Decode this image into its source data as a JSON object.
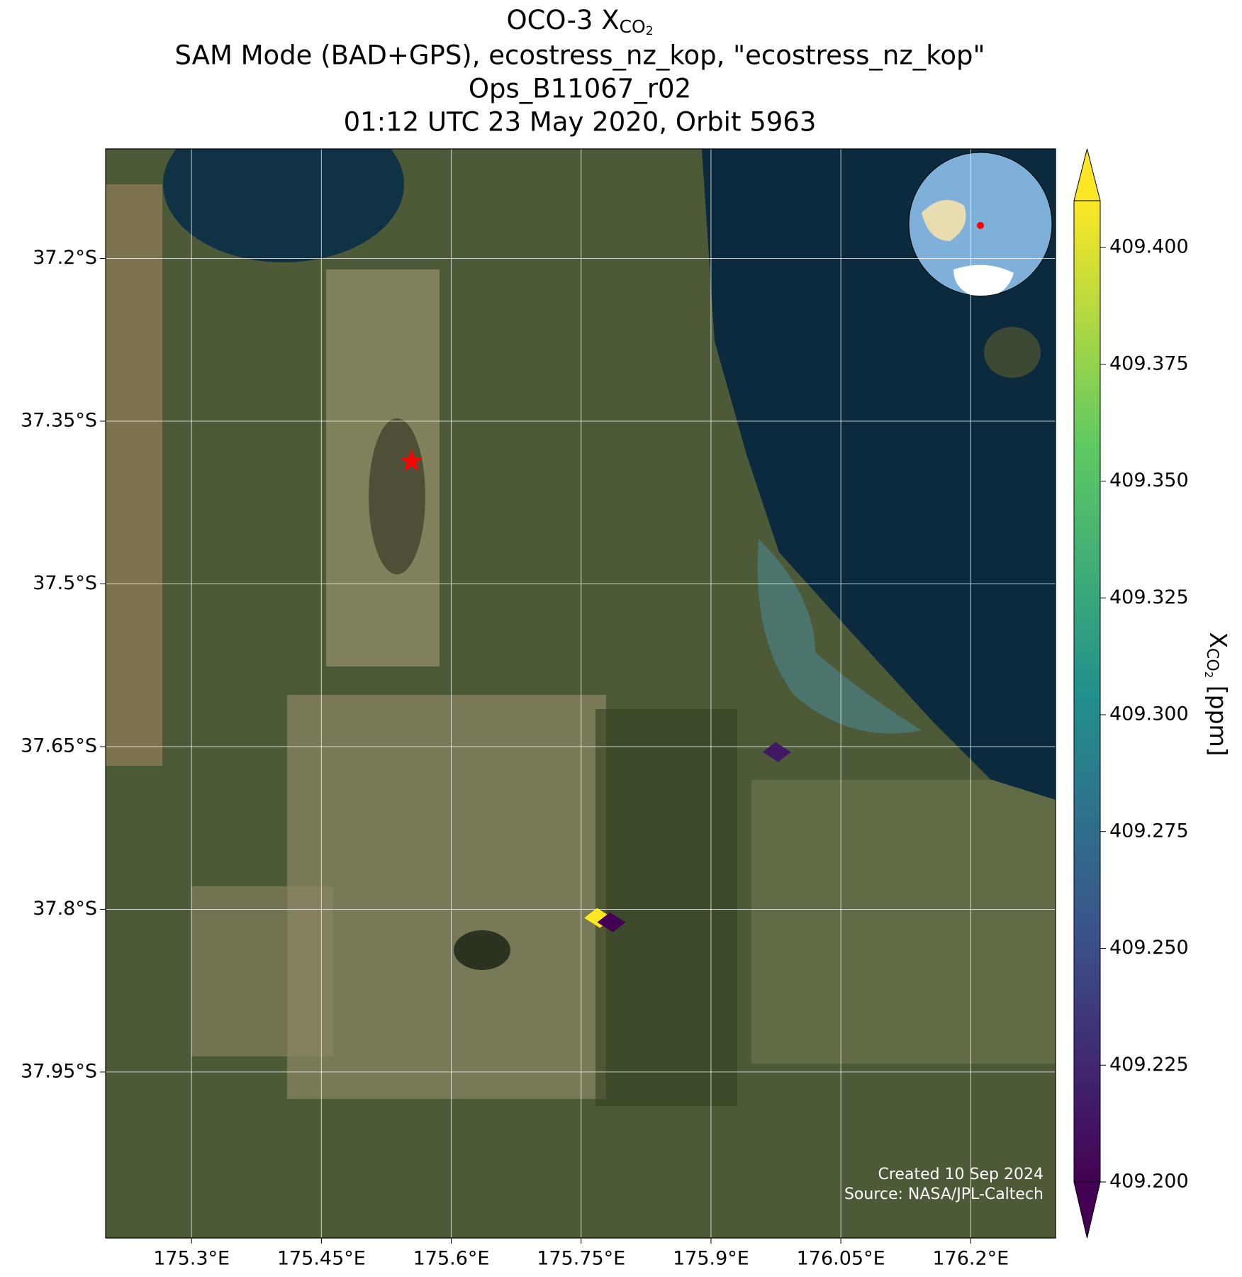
{
  "chart_data": {
    "type": "map",
    "title": {
      "prefix": "OCO-3 X",
      "subscript": "CO",
      "subsub": "2"
    },
    "subtitle_lines": [
      "SAM Mode (BAD+GPS), ecostress_nz_kop, \"ecostress_nz_kop\"",
      "Ops_B11067_r02",
      "01:12 UTC 23 May 2020, Orbit 5963"
    ],
    "colorbar_label": {
      "prefix": "X",
      "subscript": "CO",
      "subsub": "2",
      "suffix": " [ppm]"
    },
    "colormap": "viridis",
    "clim": [
      409.2,
      409.41
    ],
    "cticks": [
      {
        "value": 409.2,
        "label": "409.200"
      },
      {
        "value": 409.225,
        "label": "409.225"
      },
      {
        "value": 409.25,
        "label": "409.250"
      },
      {
        "value": 409.275,
        "label": "409.275"
      },
      {
        "value": 409.3,
        "label": "409.300"
      },
      {
        "value": 409.325,
        "label": "409.325"
      },
      {
        "value": 409.35,
        "label": "409.350"
      },
      {
        "value": 409.375,
        "label": "409.375"
      },
      {
        "value": 409.4,
        "label": "409.400"
      }
    ],
    "xlim": [
      175.2008,
      176.298
    ],
    "ylim": [
      -38.103,
      -37.099
    ],
    "xticks": [
      {
        "value": 175.3,
        "label": "175.3°E"
      },
      {
        "value": 175.45,
        "label": "175.45°E"
      },
      {
        "value": 175.6,
        "label": "175.6°E"
      },
      {
        "value": 175.75,
        "label": "175.75°E"
      },
      {
        "value": 175.9,
        "label": "175.9°E"
      },
      {
        "value": 176.05,
        "label": "176.05°E"
      },
      {
        "value": 176.2,
        "label": "176.2°E"
      }
    ],
    "yticks": [
      {
        "value": -37.2,
        "label": "37.2°S"
      },
      {
        "value": -37.35,
        "label": "37.35°S"
      },
      {
        "value": -37.5,
        "label": "37.5°S"
      },
      {
        "value": -37.65,
        "label": "37.65°S"
      },
      {
        "value": -37.8,
        "label": "37.8°S"
      },
      {
        "value": -37.95,
        "label": "37.95°S"
      }
    ],
    "grid": true,
    "soundings": {
      "x": [
        175.976,
        175.77,
        175.785
      ],
      "y": [
        -37.655,
        -37.808,
        -37.812
      ],
      "values": [
        409.215,
        409.41,
        409.2
      ]
    },
    "target": {
      "x": 175.554,
      "y": -37.387,
      "color": "#ff0000"
    },
    "credits": [
      "Created 10 Sep 2024",
      "Source: NASA/JPL-Caltech"
    ]
  }
}
